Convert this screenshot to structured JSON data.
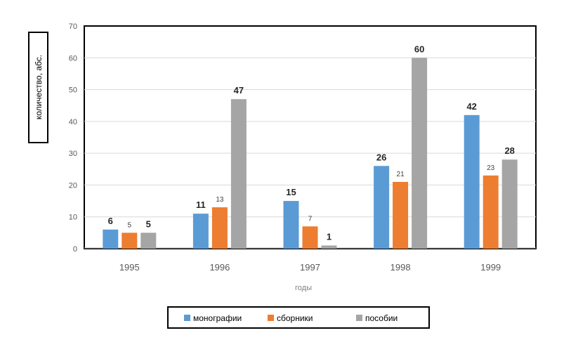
{
  "chart_data": {
    "type": "bar",
    "title": "",
    "xlabel": "годы",
    "ylabel": "количество, абс.",
    "ylim": [
      0,
      70
    ],
    "yticks": [
      0,
      10,
      20,
      30,
      40,
      50,
      60,
      70
    ],
    "grid": true,
    "legend_position": "bottom",
    "categories": [
      "1995",
      "1996",
      "1997",
      "1998",
      "1999"
    ],
    "series": [
      {
        "name": "монографии",
        "color": "#5B9BD5",
        "values": [
          6,
          11,
          15,
          26,
          42
        ]
      },
      {
        "name": "сборники",
        "color": "#ED7D31",
        "values": [
          5,
          13,
          7,
          21,
          23
        ]
      },
      {
        "name": "пособии",
        "color": "#A5A5A5",
        "values": [
          5,
          47,
          1,
          60,
          28
        ]
      }
    ],
    "data_labels_emphasis": [
      [
        true,
        false,
        true
      ],
      [
        true,
        false,
        true
      ],
      [
        true,
        false,
        true
      ],
      [
        true,
        false,
        true
      ],
      [
        true,
        false,
        true
      ]
    ]
  }
}
